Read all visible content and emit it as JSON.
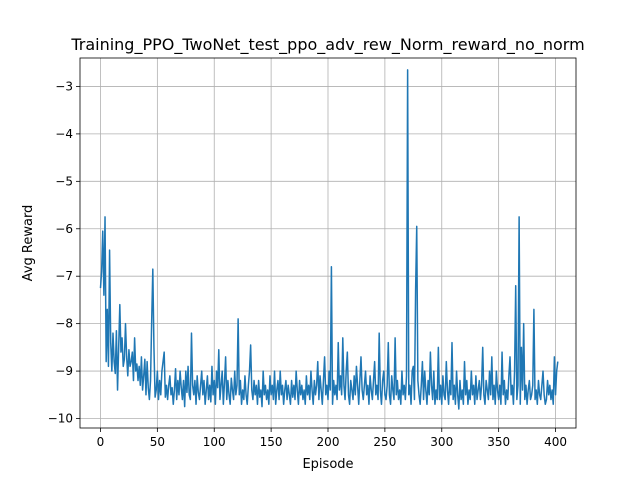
{
  "chart_data": {
    "type": "line",
    "title": "Training_PPO_TwoNet_test_ppo_adv_rew_Norm_reward_no_norm",
    "xlabel": "Episode",
    "ylabel": "Avg Reward",
    "xlim": [
      -18,
      418
    ],
    "ylim": [
      -10.2,
      -2.4
    ],
    "xticks": [
      0,
      50,
      100,
      150,
      200,
      250,
      300,
      350,
      400
    ],
    "yticks": [
      -10,
      -9,
      -8,
      -7,
      -6,
      -5,
      -4,
      -3
    ],
    "xtick_labels": [
      "0",
      "50",
      "100",
      "150",
      "200",
      "250",
      "300",
      "350",
      "400"
    ],
    "ytick_labels": [
      "−10",
      "−9",
      "−8",
      "−7",
      "−6",
      "−5",
      "−4",
      "−3"
    ],
    "grid": true,
    "color": "#1f77b4",
    "series": [
      {
        "values": [
          -7.25,
          -6.9,
          -6.05,
          -7.4,
          -5.75,
          -8.8,
          -7.7,
          -8.9,
          -6.45,
          -8.4,
          -9.0,
          -8.2,
          -8.8,
          -9.05,
          -8.15,
          -9.4,
          -8.5,
          -7.6,
          -8.6,
          -8.3,
          -8.9,
          -8.75,
          -8.0,
          -8.7,
          -9.1,
          -8.55,
          -8.9,
          -8.8,
          -8.6,
          -9.2,
          -8.3,
          -9.0,
          -8.85,
          -9.2,
          -8.9,
          -9.3,
          -8.7,
          -9.4,
          -9.1,
          -8.75,
          -9.5,
          -8.8,
          -9.35,
          -9.6,
          -9.2,
          -7.95,
          -6.85,
          -8.5,
          -9.55,
          -9.4,
          -9.0,
          -9.6,
          -9.2,
          -9.5,
          -9.0,
          -8.8,
          -8.6,
          -9.55,
          -9.3,
          -9.6,
          -9.3,
          -9.1,
          -9.5,
          -9.35,
          -9.7,
          -9.4,
          -8.95,
          -9.6,
          -9.2,
          -9.5,
          -9.0,
          -9.35,
          -9.6,
          -9.2,
          -9.75,
          -9.0,
          -9.45,
          -8.9,
          -9.5,
          -9.6,
          -8.2,
          -9.3,
          -9.5,
          -9.2,
          -9.7,
          -9.1,
          -9.45,
          -9.6,
          -9.3,
          -9.0,
          -9.5,
          -9.2,
          -9.7,
          -9.4,
          -9.1,
          -9.6,
          -9.3,
          -9.65,
          -8.9,
          -9.5,
          -9.2,
          -9.7,
          -9.0,
          -9.35,
          -8.55,
          -9.6,
          -9.3,
          -9.0,
          -9.7,
          -9.25,
          -8.7,
          -9.6,
          -9.2,
          -9.5,
          -9.7,
          -9.15,
          -9.4,
          -9.6,
          -9.0,
          -9.5,
          -9.3,
          -7.9,
          -9.5,
          -9.2,
          -9.7,
          -9.4,
          -9.6,
          -9.1,
          -9.5,
          -9.7,
          -9.3,
          -9.0,
          -8.45,
          -9.4,
          -9.6,
          -9.2,
          -9.5,
          -9.3,
          -9.7,
          -9.2,
          -9.55,
          -9.4,
          -9.75,
          -9.0,
          -9.5,
          -9.3,
          -9.6,
          -9.4,
          -9.7,
          -9.1,
          -9.5,
          -9.3,
          -9.6,
          -9.0,
          -9.7,
          -9.4,
          -9.2,
          -9.6,
          -9.0,
          -9.5,
          -9.3,
          -9.7,
          -9.4,
          -9.2,
          -9.6,
          -9.3,
          -9.5,
          -9.7,
          -9.2,
          -9.55,
          -9.3,
          -9.6,
          -9.0,
          -9.4,
          -9.7,
          -9.2,
          -9.5,
          -9.3,
          -9.6,
          -9.4,
          -9.7,
          -9.1,
          -9.5,
          -9.3,
          -9.6,
          -9.0,
          -9.4,
          -9.7,
          -9.2,
          -9.5,
          -9.3,
          -8.8,
          -9.6,
          -9.1,
          -9.4,
          -9.7,
          -9.2,
          -8.7,
          -9.5,
          -9.3,
          -9.6,
          -9.0,
          -9.4,
          -6.8,
          -9.7,
          -9.2,
          -9.5,
          -9.3,
          -9.6,
          -8.4,
          -9.4,
          -9.1,
          -9.5,
          -8.3,
          -9.3,
          -9.6,
          -9.0,
          -8.6,
          -9.5,
          -9.7,
          -9.2,
          -9.4,
          -9.6,
          -9.1,
          -9.5,
          -8.9,
          -9.3,
          -9.7,
          -9.2,
          -8.7,
          -9.4,
          -9.6,
          -9.3,
          -9.0,
          -9.5,
          -9.3,
          -9.7,
          -9.1,
          -9.4,
          -9.6,
          -9.2,
          -8.8,
          -9.5,
          -9.3,
          -9.6,
          -8.2,
          -9.4,
          -9.7,
          -9.2,
          -9.0,
          -9.5,
          -9.6,
          -9.3,
          -8.4,
          -9.5,
          -9.7,
          -9.1,
          -9.4,
          -9.6,
          -8.3,
          -9.5,
          -9.2,
          -9.6,
          -9.4,
          -9.7,
          -9.0,
          -9.5,
          -9.3,
          -9.6,
          -9.1,
          -2.65,
          -9.5,
          -9.3,
          -9.7,
          -9.0,
          -8.9,
          -9.6,
          -7.3,
          -5.95,
          -9.2,
          -9.5,
          -9.7,
          -9.3,
          -8.8,
          -9.6,
          -9.0,
          -9.4,
          -9.7,
          -9.2,
          -9.5,
          -8.6,
          -9.3,
          -9.6,
          -9.0,
          -9.7,
          -9.4,
          -9.6,
          -8.5,
          -9.6,
          -9.3,
          -9.7,
          -9.1,
          -9.5,
          -9.6,
          -8.8,
          -9.4,
          -9.7,
          -9.2,
          -9.5,
          -8.4,
          -9.6,
          -9.3,
          -9.7,
          -9.0,
          -9.5,
          -9.8,
          -9.2,
          -9.6,
          -9.4,
          -9.7,
          -8.8,
          -9.5,
          -9.2,
          -9.7,
          -9.4,
          -9.6,
          -9.0,
          -9.5,
          -9.3,
          -9.7,
          -9.1,
          -9.6,
          -9.4,
          -9.2,
          -9.6,
          -9.3,
          -8.5,
          -9.5,
          -9.7,
          -9.2,
          -9.4,
          -9.6,
          -9.0,
          -9.5,
          -8.7,
          -9.6,
          -9.3,
          -9.7,
          -9.0,
          -9.4,
          -9.6,
          -9.3,
          -9.7,
          -8.6,
          -9.5,
          -9.2,
          -9.7,
          -9.4,
          -9.6,
          -9.1,
          -8.7,
          -9.5,
          -9.3,
          -9.7,
          -9.0,
          -7.2,
          -9.6,
          -9.3,
          -5.75,
          -9.7,
          -8.5,
          -9.4,
          -8.0,
          -9.6,
          -9.3,
          -9.7,
          -9.4,
          -9.2,
          -9.6,
          -9.5,
          -9.3,
          -7.7,
          -9.6,
          -9.4,
          -9.7,
          -9.2,
          -9.5,
          -9.6,
          -9.3,
          -9.0,
          -9.5,
          -9.7,
          -9.6,
          -9.2,
          -9.5,
          -9.3,
          -9.6,
          -9.4,
          -9.7,
          -8.7,
          -9.5,
          -9.0,
          -8.8
        ]
      }
    ]
  }
}
